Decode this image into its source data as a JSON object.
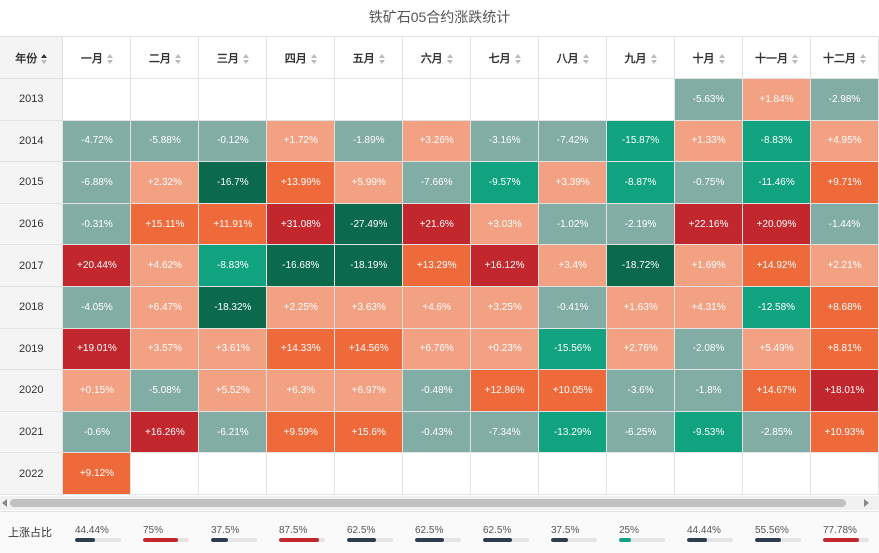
{
  "title": "铁矿石05合约涨跌统计",
  "header": {
    "year_label": "年份",
    "months": [
      "一月",
      "二月",
      "三月",
      "四月",
      "五月",
      "六月",
      "七月",
      "八月",
      "九月",
      "十月",
      "十一月",
      "十二月"
    ]
  },
  "colors": {
    "dark_red": "#c1272d",
    "orange": "#ef6a3a",
    "salmon": "#f2a183",
    "grey_green": "#82ada4",
    "green": "#11a37f",
    "dark_green": "#0b6a4c",
    "bar_dark": "#2f3e4e",
    "bar_red": "#c1272d",
    "bar_green": "#11a37f"
  },
  "rows": [
    {
      "year": "2013",
      "cells": [
        "",
        "",
        "",
        "",
        "",
        "",
        "",
        "",
        "",
        "-5.63%",
        "+1.84%",
        "-2.98%"
      ],
      "tones": [
        "",
        "",
        "",
        "",
        "",
        "",
        "",
        "",
        "",
        "grey_green",
        "salmon",
        "grey_green"
      ]
    },
    {
      "year": "2014",
      "cells": [
        "-4.72%",
        "-5.88%",
        "-0.12%",
        "+1.72%",
        "-1.89%",
        "+3.26%",
        "-3.16%",
        "-7.42%",
        "-15.87%",
        "+1.33%",
        "-8.83%",
        "+4.95%"
      ],
      "tones": [
        "grey_green",
        "grey_green",
        "grey_green",
        "salmon",
        "grey_green",
        "salmon",
        "grey_green",
        "grey_green",
        "green",
        "salmon",
        "green",
        "salmon"
      ]
    },
    {
      "year": "2015",
      "cells": [
        "-6.88%",
        "+2.32%",
        "-16.7%",
        "+13.99%",
        "+5.99%",
        "-7.66%",
        "-9.57%",
        "+3.39%",
        "-8.87%",
        "-0.75%",
        "-11.46%",
        "+9.71%"
      ],
      "tones": [
        "grey_green",
        "salmon",
        "dark_green",
        "orange",
        "salmon",
        "grey_green",
        "green",
        "salmon",
        "green",
        "grey_green",
        "green",
        "orange"
      ]
    },
    {
      "year": "2016",
      "cells": [
        "-0.31%",
        "+15.11%",
        "+11.91%",
        "+31.08%",
        "-27.49%",
        "+21.6%",
        "+3.03%",
        "-1.02%",
        "-2.19%",
        "+22.16%",
        "+20.09%",
        "-1.44%"
      ],
      "tones": [
        "grey_green",
        "orange",
        "orange",
        "dark_red",
        "dark_green",
        "dark_red",
        "salmon",
        "grey_green",
        "grey_green",
        "dark_red",
        "dark_red",
        "grey_green"
      ]
    },
    {
      "year": "2017",
      "cells": [
        "+20.44%",
        "+4.62%",
        "-8.83%",
        "-16.68%",
        "-18.19%",
        "+13.29%",
        "+16.12%",
        "+3.4%",
        "-18.72%",
        "+1.69%",
        "+14.92%",
        "+2.21%"
      ],
      "tones": [
        "dark_red",
        "salmon",
        "green",
        "dark_green",
        "dark_green",
        "orange",
        "dark_red",
        "salmon",
        "dark_green",
        "salmon",
        "orange",
        "salmon"
      ]
    },
    {
      "year": "2018",
      "cells": [
        "-4.05%",
        "+6.47%",
        "-18.32%",
        "+2.25%",
        "+3.63%",
        "+4.6%",
        "+3.25%",
        "-0.41%",
        "+1.63%",
        "+4.31%",
        "-12.58%",
        "+8.68%"
      ],
      "tones": [
        "grey_green",
        "salmon",
        "dark_green",
        "salmon",
        "salmon",
        "salmon",
        "salmon",
        "grey_green",
        "salmon",
        "salmon",
        "green",
        "orange"
      ]
    },
    {
      "year": "2019",
      "cells": [
        "+19.01%",
        "+3.57%",
        "+3.61%",
        "+14.33%",
        "+14.56%",
        "+6.76%",
        "+0.23%",
        "-15.56%",
        "+2.76%",
        "-2.08%",
        "+5.49%",
        "+8.81%"
      ],
      "tones": [
        "dark_red",
        "salmon",
        "salmon",
        "orange",
        "orange",
        "salmon",
        "salmon",
        "green",
        "salmon",
        "grey_green",
        "salmon",
        "orange"
      ]
    },
    {
      "year": "2020",
      "cells": [
        "+0.15%",
        "-5.08%",
        "+5.52%",
        "+6.3%",
        "+6.97%",
        "-0.48%",
        "+12.86%",
        "+10.05%",
        "-3.6%",
        "-1.8%",
        "+14.67%",
        "+18.01%"
      ],
      "tones": [
        "salmon",
        "grey_green",
        "salmon",
        "salmon",
        "salmon",
        "grey_green",
        "orange",
        "orange",
        "grey_green",
        "grey_green",
        "orange",
        "dark_red"
      ]
    },
    {
      "year": "2021",
      "cells": [
        "-0.6%",
        "+16.26%",
        "-6.21%",
        "+9.59%",
        "+15.6%",
        "-0.43%",
        "-7.34%",
        "-13.29%",
        "-6.25%",
        "-9.53%",
        "-2.85%",
        "+10.93%"
      ],
      "tones": [
        "grey_green",
        "dark_red",
        "grey_green",
        "orange",
        "orange",
        "grey_green",
        "grey_green",
        "green",
        "grey_green",
        "green",
        "grey_green",
        "orange"
      ]
    },
    {
      "year": "2022",
      "cells": [
        "+9.12%",
        "",
        "",
        "",
        "",
        "",
        "",
        "",
        "",
        "",
        "",
        ""
      ],
      "tones": [
        "orange",
        "",
        "",
        "",
        "",
        "",
        "",
        "",
        "",
        "",
        "",
        ""
      ]
    }
  ],
  "footer": {
    "label": "上涨占比",
    "stats": [
      {
        "pct": "44.44%",
        "value": 0.4444,
        "tone": "bar_dark"
      },
      {
        "pct": "75%",
        "value": 0.75,
        "tone": "bar_red"
      },
      {
        "pct": "37.5%",
        "value": 0.375,
        "tone": "bar_dark"
      },
      {
        "pct": "87.5%",
        "value": 0.875,
        "tone": "bar_red"
      },
      {
        "pct": "62.5%",
        "value": 0.625,
        "tone": "bar_dark"
      },
      {
        "pct": "62.5%",
        "value": 0.625,
        "tone": "bar_dark"
      },
      {
        "pct": "62.5%",
        "value": 0.625,
        "tone": "bar_dark"
      },
      {
        "pct": "37.5%",
        "value": 0.375,
        "tone": "bar_dark"
      },
      {
        "pct": "25%",
        "value": 0.25,
        "tone": "bar_green"
      },
      {
        "pct": "44.44%",
        "value": 0.4444,
        "tone": "bar_dark"
      },
      {
        "pct": "55.56%",
        "value": 0.5556,
        "tone": "bar_dark"
      },
      {
        "pct": "77.78%",
        "value": 0.7778,
        "tone": "bar_red"
      }
    ]
  }
}
